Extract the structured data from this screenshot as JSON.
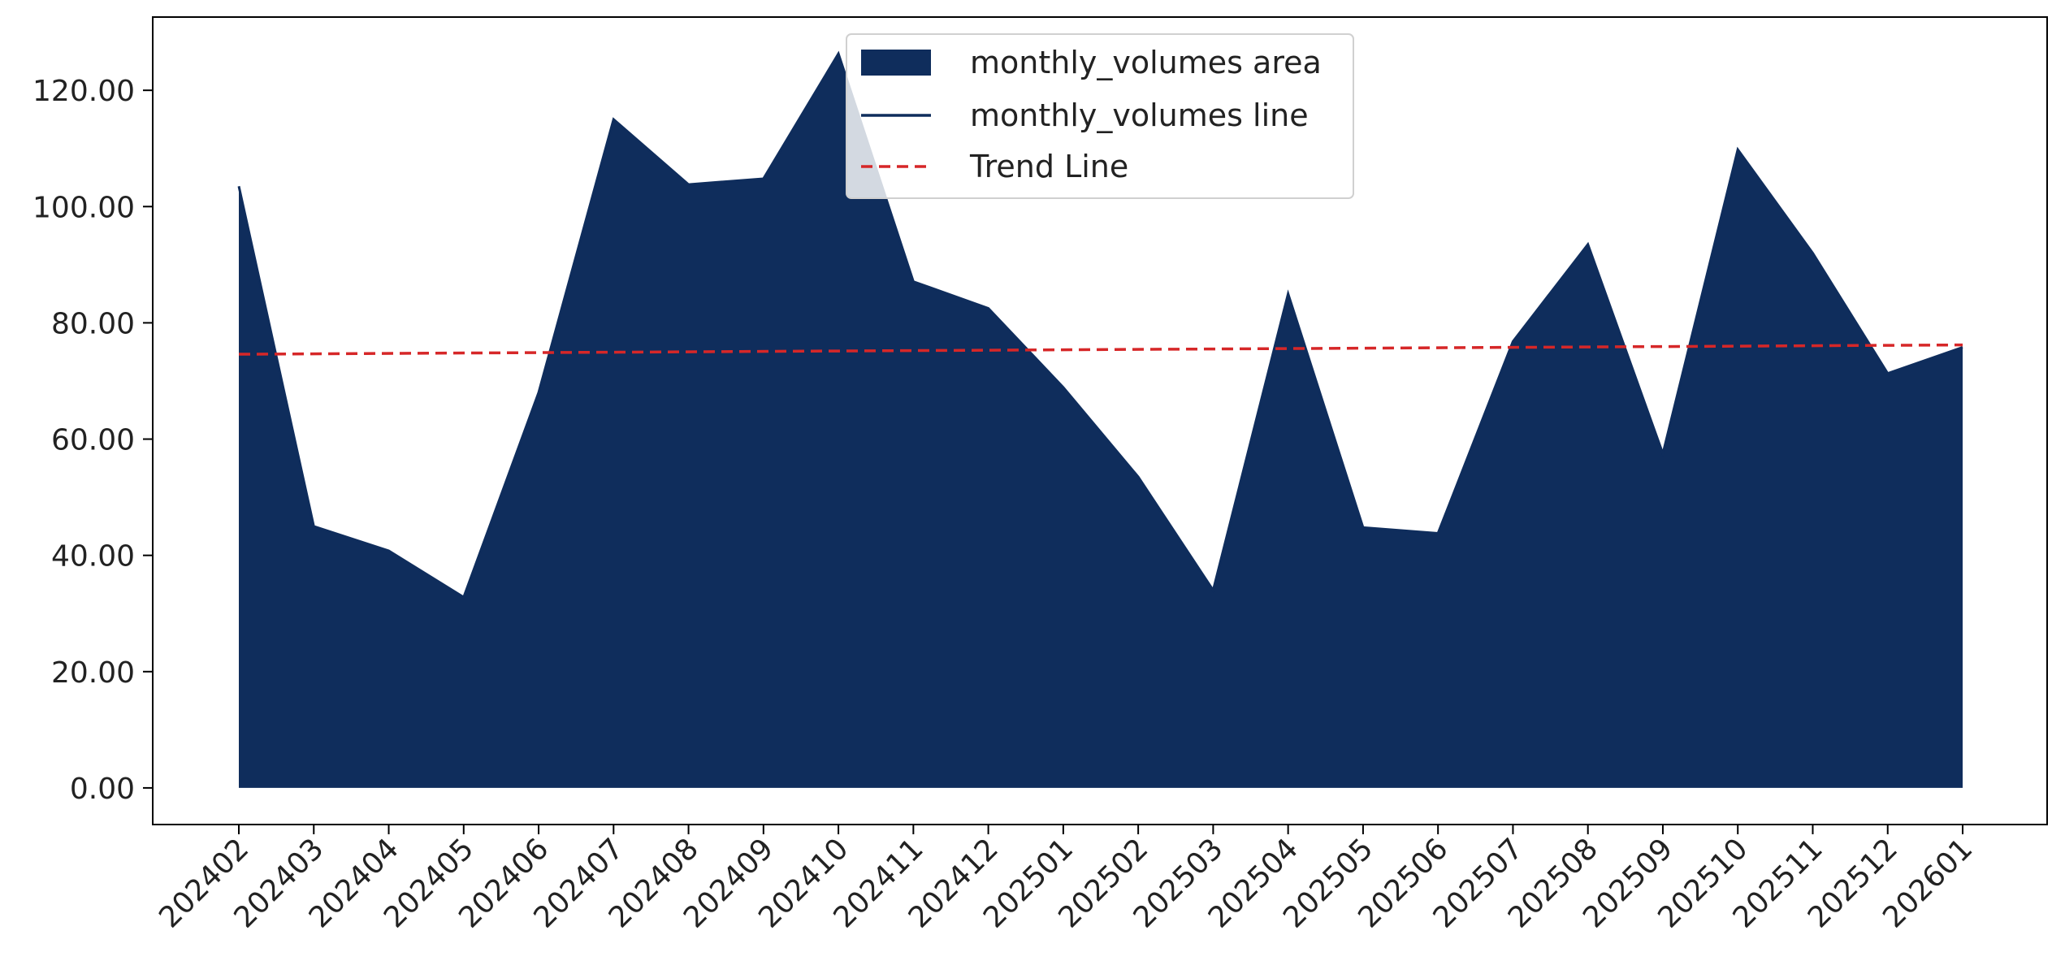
{
  "chart_data": {
    "type": "area",
    "categories": [
      "202402",
      "202403",
      "202404",
      "202405",
      "202406",
      "202407",
      "202408",
      "202409",
      "202410",
      "202411",
      "202412",
      "202501",
      "202502",
      "202503",
      "202504",
      "202505",
      "202506",
      "202507",
      "202508",
      "202509",
      "202510",
      "202511",
      "202512",
      "202601"
    ],
    "series": [
      {
        "name": "monthly_volumes area",
        "kind": "area",
        "values": [
          103.5,
          45.0,
          40.8,
          32.8,
          68.0,
          115.0,
          103.8,
          104.8,
          126.3,
          87.1,
          82.5,
          68.9,
          53.5,
          34.0,
          85.0,
          44.8,
          43.8,
          76.8,
          93.5,
          57.5,
          109.8,
          92.0,
          71.3,
          75.8
        ]
      },
      {
        "name": "monthly_volumes line",
        "kind": "line",
        "values": [
          103.5,
          45.0,
          40.8,
          32.8,
          68.0,
          115.0,
          103.8,
          104.8,
          126.3,
          87.1,
          82.5,
          68.9,
          53.5,
          34.0,
          85.0,
          44.8,
          43.8,
          76.8,
          93.5,
          57.5,
          109.8,
          92.0,
          71.3,
          75.8
        ]
      },
      {
        "name": "Trend Line",
        "kind": "trend",
        "start": 74.6,
        "end": 76.2
      }
    ],
    "yticks": [
      "0.00",
      "20.00",
      "40.00",
      "60.00",
      "80.00",
      "100.00",
      "120.00"
    ],
    "ylim": [
      -6.3,
      132.6
    ],
    "grid": false,
    "legend_position": "top-center",
    "colors": {
      "area": "#0f2d5c",
      "line": "#0f2d5c",
      "trend": "#d62728"
    },
    "title": "",
    "xlabel": "",
    "ylabel": ""
  }
}
